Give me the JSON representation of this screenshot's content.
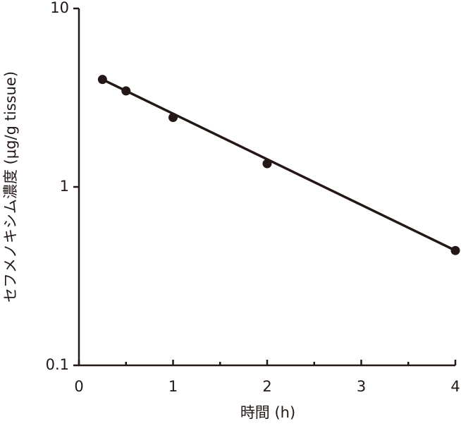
{
  "chart_data": {
    "type": "scatter",
    "x_label": "時間 (h)",
    "y_label": "セフメノキシム濃度 (μg/g tissue)",
    "x": [
      0.25,
      0.5,
      1,
      2,
      4
    ],
    "values": [
      4.0,
      3.45,
      2.45,
      1.35,
      0.44
    ],
    "color": "#231815",
    "fit": {
      "x": [
        0.25,
        4
      ],
      "values": [
        4.0,
        0.44
      ]
    },
    "xlim": [
      0,
      4
    ],
    "xticks": [
      0,
      1,
      2,
      3,
      4
    ],
    "xminorticks": [
      0.5,
      1.5,
      2.5,
      3.5
    ],
    "ylim": [
      0.1,
      10
    ],
    "yticks": [
      0.1,
      1,
      10
    ],
    "ylog": true,
    "grid": false
  }
}
